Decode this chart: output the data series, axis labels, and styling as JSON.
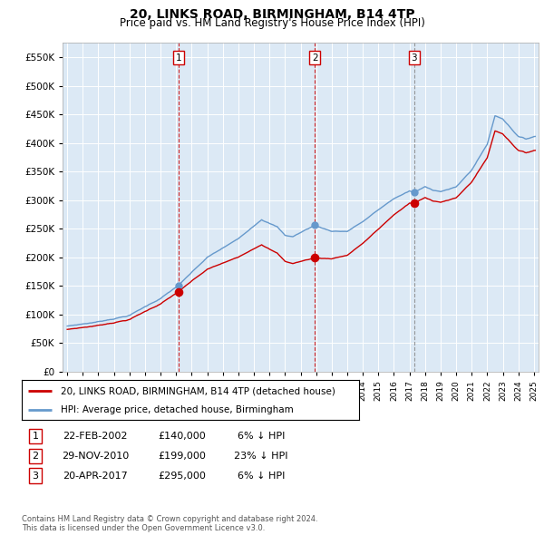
{
  "title": "20, LINKS ROAD, BIRMINGHAM, B14 4TP",
  "subtitle": "Price paid vs. HM Land Registry's House Price Index (HPI)",
  "title_fontsize": 10,
  "subtitle_fontsize": 8.5,
  "background_color": "#dce9f5",
  "legend_label_red": "20, LINKS ROAD, BIRMINGHAM, B14 4TP (detached house)",
  "legend_label_blue": "HPI: Average price, detached house, Birmingham",
  "footer": "Contains HM Land Registry data © Crown copyright and database right 2024.\nThis data is licensed under the Open Government Licence v3.0.",
  "sales": [
    {
      "num": 1,
      "date": "22-FEB-2002",
      "price": 140000,
      "pct": "6%",
      "dir": "↓",
      "x": 2002.14,
      "vline_color": "#cc0000",
      "vline_style": "--"
    },
    {
      "num": 2,
      "date": "29-NOV-2010",
      "price": 199000,
      "pct": "23%",
      "dir": "↓",
      "x": 2010.91,
      "vline_color": "#cc0000",
      "vline_style": "--"
    },
    {
      "num": 3,
      "date": "20-APR-2017",
      "price": 295000,
      "pct": "6%",
      "dir": "↓",
      "x": 2017.3,
      "vline_color": "#888888",
      "vline_style": "--"
    }
  ],
  "ylim": [
    0,
    575000
  ],
  "yticks": [
    0,
    50000,
    100000,
    150000,
    200000,
    250000,
    300000,
    350000,
    400000,
    450000,
    500000,
    550000
  ],
  "red_color": "#cc0000",
  "blue_color": "#6699cc",
  "dot_color_red": "#cc0000",
  "dot_color_blue": "#6699cc",
  "grid_color": "#ffffff"
}
